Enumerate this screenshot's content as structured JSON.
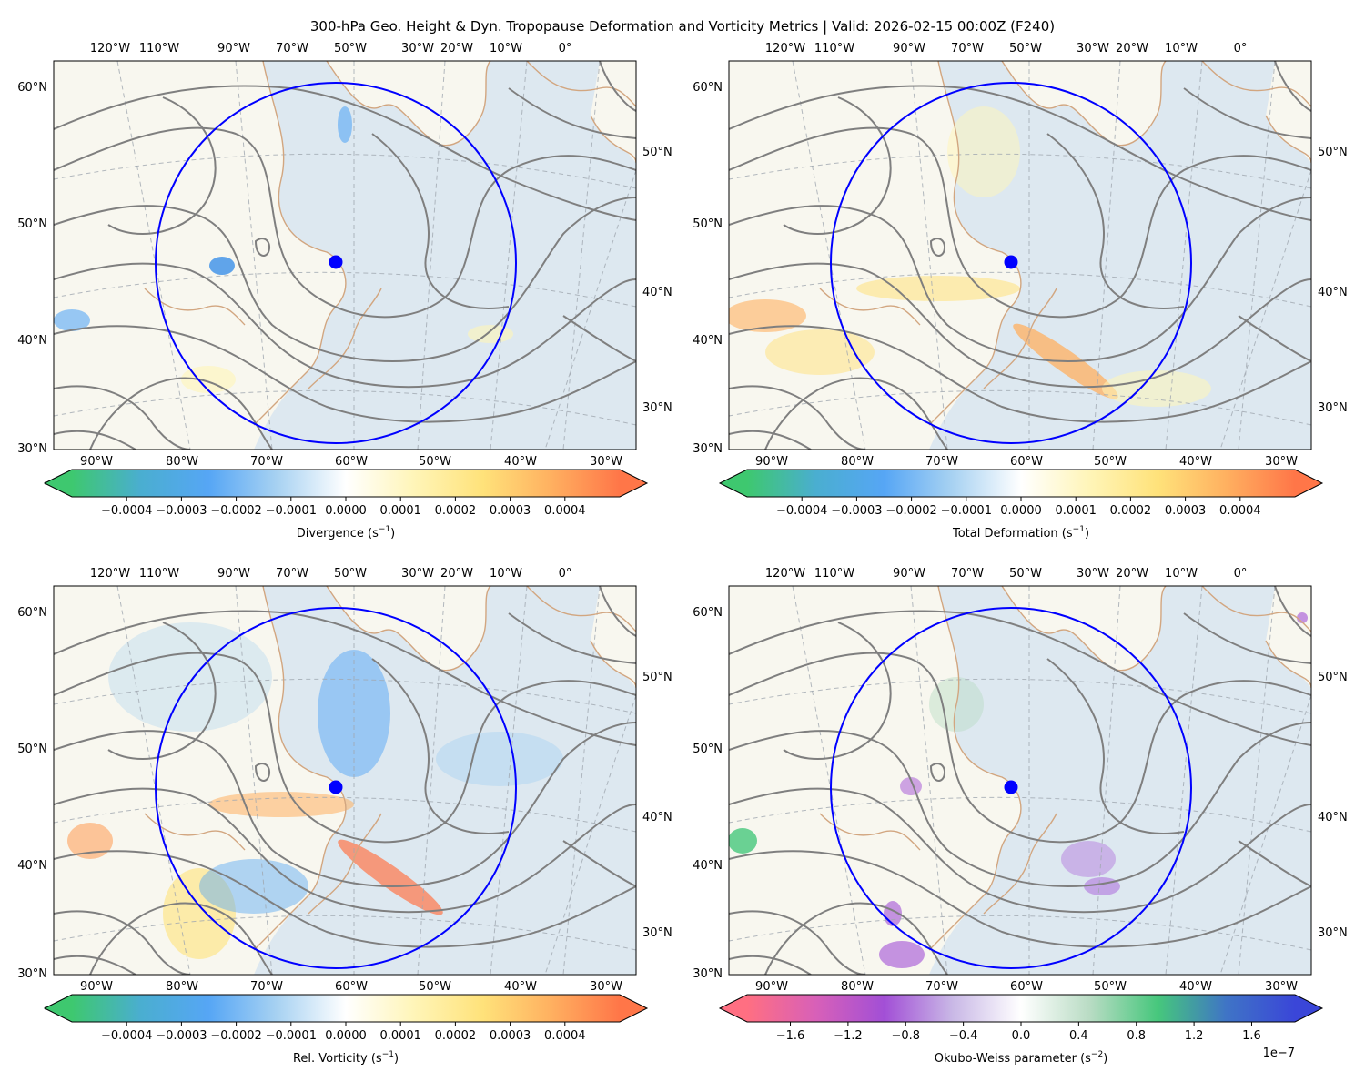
{
  "title": "300-hPa Geo. Height & Dyn. Tropopause Deformation and Vorticity Metrics |  Valid: 2026-02-15 00:00Z (F240)",
  "colors": {
    "ocean": "#dde8f0",
    "land": "#f8f7ef",
    "coastline": "#d2a680",
    "height_contour": "#7f7f7f",
    "graticule": "#a0a8b0",
    "circle": "#0000ff",
    "marker": "#0000ff"
  },
  "top_lon_labels": [
    "120°W",
    "110°W",
    "90°W",
    "70°W",
    "50°W",
    "30°W",
    "20°W",
    "10°W",
    "0°"
  ],
  "bottom_lon_labels": [
    "90°W",
    "80°W",
    "70°W",
    "60°W",
    "50°W",
    "40°W",
    "30°W"
  ],
  "left_lat_labels": [
    "60°N",
    "50°N",
    "40°N",
    "30°N"
  ],
  "right_lat_labels": [
    "50°N",
    "40°N",
    "30°N"
  ],
  "chart_data": [
    {
      "type": "heatmap",
      "panel": "top-left",
      "field": "Divergence",
      "colorbar_label": "Divergence (s",
      "unit_exponent": "−1",
      "unit_close": ")",
      "colorbar_ticks": [
        "−0.0004",
        "−0.0003",
        "−0.0002",
        "−0.0001",
        "0.0000",
        "0.0001",
        "0.0002",
        "0.0003",
        "0.0004"
      ],
      "colorbar_range": [
        -0.0005,
        0.0005
      ],
      "colormap": [
        "#3ec86f",
        "#4aaed0",
        "#56a6f5",
        "#a8d2f2",
        "#ffffff",
        "#fff5b8",
        "#ffe27a",
        "#ffb060",
        "#ff7648"
      ],
      "lon_ticks_bottom": [
        -90,
        -80,
        -70,
        -60,
        -50,
        -40,
        -30
      ],
      "lat_ticks_left": [
        60,
        50,
        40,
        30
      ],
      "extent_deg": {
        "lon": [
          -95,
          -25
        ],
        "lat": [
          30,
          62
        ]
      },
      "scale_offset": ""
    },
    {
      "type": "heatmap",
      "panel": "top-right",
      "field": "Total Deformation",
      "colorbar_label": "Total Deformation (s",
      "unit_exponent": "−1",
      "unit_close": ")",
      "colorbar_ticks": [
        "−0.0004",
        "−0.0003",
        "−0.0002",
        "−0.0001",
        "0.0000",
        "0.0001",
        "0.0002",
        "0.0003",
        "0.0004"
      ],
      "colorbar_range": [
        -0.0005,
        0.0005
      ],
      "colormap": [
        "#3ec86f",
        "#4aaed0",
        "#56a6f5",
        "#a8d2f2",
        "#ffffff",
        "#fff5b8",
        "#ffe27a",
        "#ffb060",
        "#ff7648"
      ],
      "lon_ticks_bottom": [
        -90,
        -80,
        -70,
        -60,
        -50,
        -40,
        -30
      ],
      "lat_ticks_left": [
        60,
        50,
        40,
        30
      ],
      "extent_deg": {
        "lon": [
          -95,
          -25
        ],
        "lat": [
          30,
          62
        ]
      },
      "scale_offset": ""
    },
    {
      "type": "heatmap",
      "panel": "bottom-left",
      "field": "Rel. Vorticity",
      "colorbar_label": "Rel. Vorticity (s",
      "unit_exponent": "−1",
      "unit_close": ")",
      "colorbar_ticks": [
        "−0.0004",
        "−0.0003",
        "−0.0002",
        "−0.0001",
        "0.0000",
        "0.0001",
        "0.0002",
        "0.0003",
        "0.0004"
      ],
      "colorbar_range": [
        -0.0005,
        0.0005
      ],
      "colormap": [
        "#3ec86f",
        "#4aaed0",
        "#56a6f5",
        "#a8d2f2",
        "#ffffff",
        "#fff5b8",
        "#ffe27a",
        "#ffb060",
        "#ff7648"
      ],
      "lon_ticks_bottom": [
        -90,
        -80,
        -70,
        -60,
        -50,
        -40,
        -30
      ],
      "lat_ticks_left": [
        60,
        50,
        40,
        30
      ],
      "extent_deg": {
        "lon": [
          -95,
          -25
        ],
        "lat": [
          30,
          62
        ]
      },
      "scale_offset": ""
    },
    {
      "type": "heatmap",
      "panel": "bottom-right",
      "field": "Okubo-Weiss parameter",
      "colorbar_label": "Okubo-Weiss parameter (s",
      "unit_exponent": "−2",
      "unit_close": ")",
      "colorbar_ticks": [
        "−1.6",
        "−1.2",
        "−0.8",
        "−0.4",
        "0.0",
        "0.4",
        "0.8",
        "1.2",
        "1.6"
      ],
      "colorbar_range": [
        -1.9,
        1.9
      ],
      "colormap": [
        "#ff6f82",
        "#d860b8",
        "#a24fd6",
        "#c9b8e6",
        "#ffffff",
        "#b9dcc4",
        "#46c77c",
        "#3f74c6",
        "#3a46d8"
      ],
      "lon_ticks_bottom": [
        -90,
        -80,
        -70,
        -60,
        -50,
        -40,
        -30
      ],
      "lat_ticks_left": [
        60,
        50,
        40,
        30
      ],
      "extent_deg": {
        "lon": [
          -95,
          -25
        ],
        "lat": [
          30,
          62
        ]
      },
      "scale_offset": "1e−7"
    }
  ]
}
